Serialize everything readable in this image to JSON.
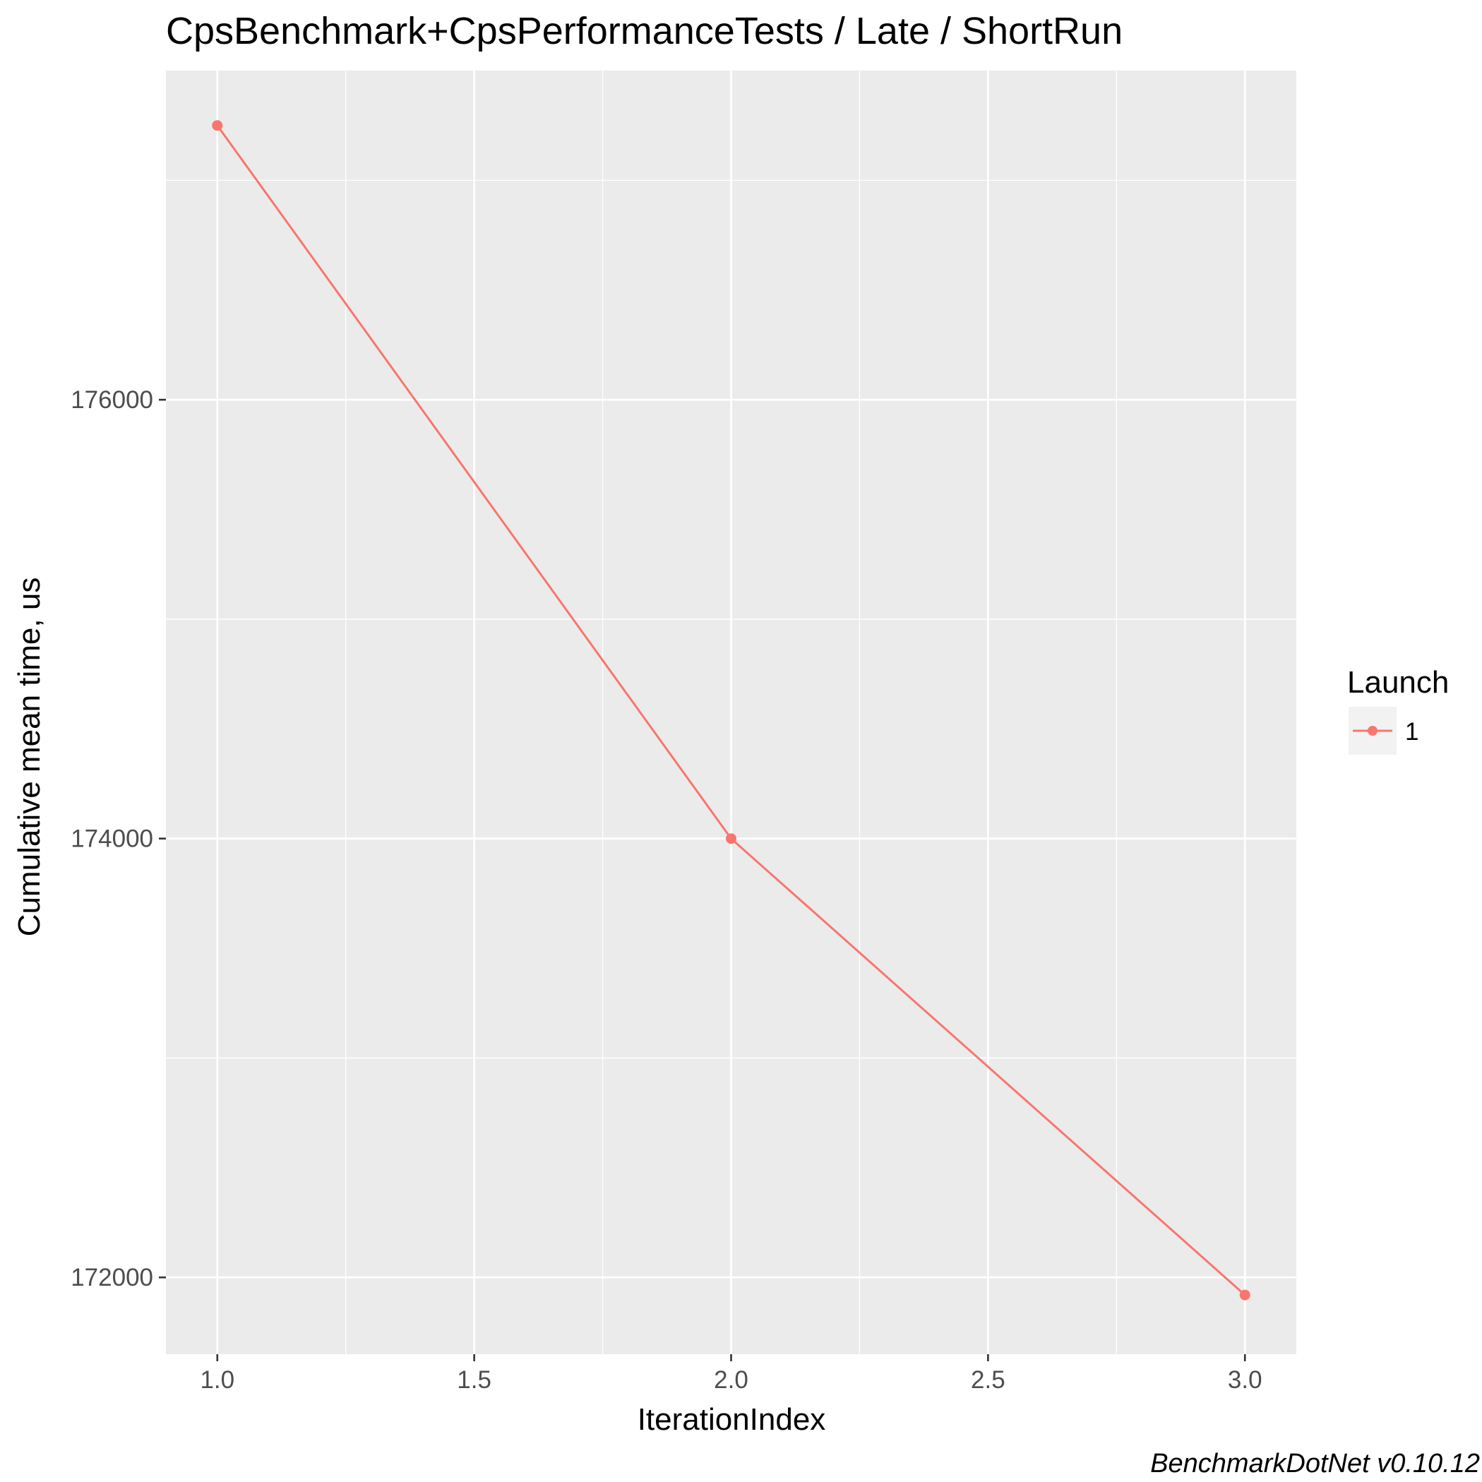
{
  "caption": "BenchmarkDotNet v0.10.12",
  "colors": {
    "panel_bg": "#EBEBEB",
    "grid": "#FFFFFF",
    "series": "#F8766D",
    "tick": "#333333"
  },
  "chart_data": {
    "type": "line",
    "title": "CpsBenchmark+CpsPerformanceTests / Late / ShortRun",
    "xlabel": "IterationIndex",
    "ylabel": "Cumulative mean time, us",
    "xlim": [
      0.9,
      3.1
    ],
    "ylim": [
      171650,
      177500
    ],
    "x_ticks": [
      1.0,
      1.5,
      2.0,
      2.5,
      3.0
    ],
    "x_tick_labels": [
      "1.0",
      "1.5",
      "2.0",
      "2.5",
      "3.0"
    ],
    "y_ticks": [
      172000,
      174000,
      176000
    ],
    "y_tick_labels": [
      "172000",
      "174000",
      "176000"
    ],
    "grid": true,
    "legend": {
      "title": "Launch",
      "position": "right"
    },
    "series": [
      {
        "name": "1",
        "x": [
          1,
          2,
          3
        ],
        "y": [
          177250,
          174000,
          171920
        ]
      }
    ]
  }
}
